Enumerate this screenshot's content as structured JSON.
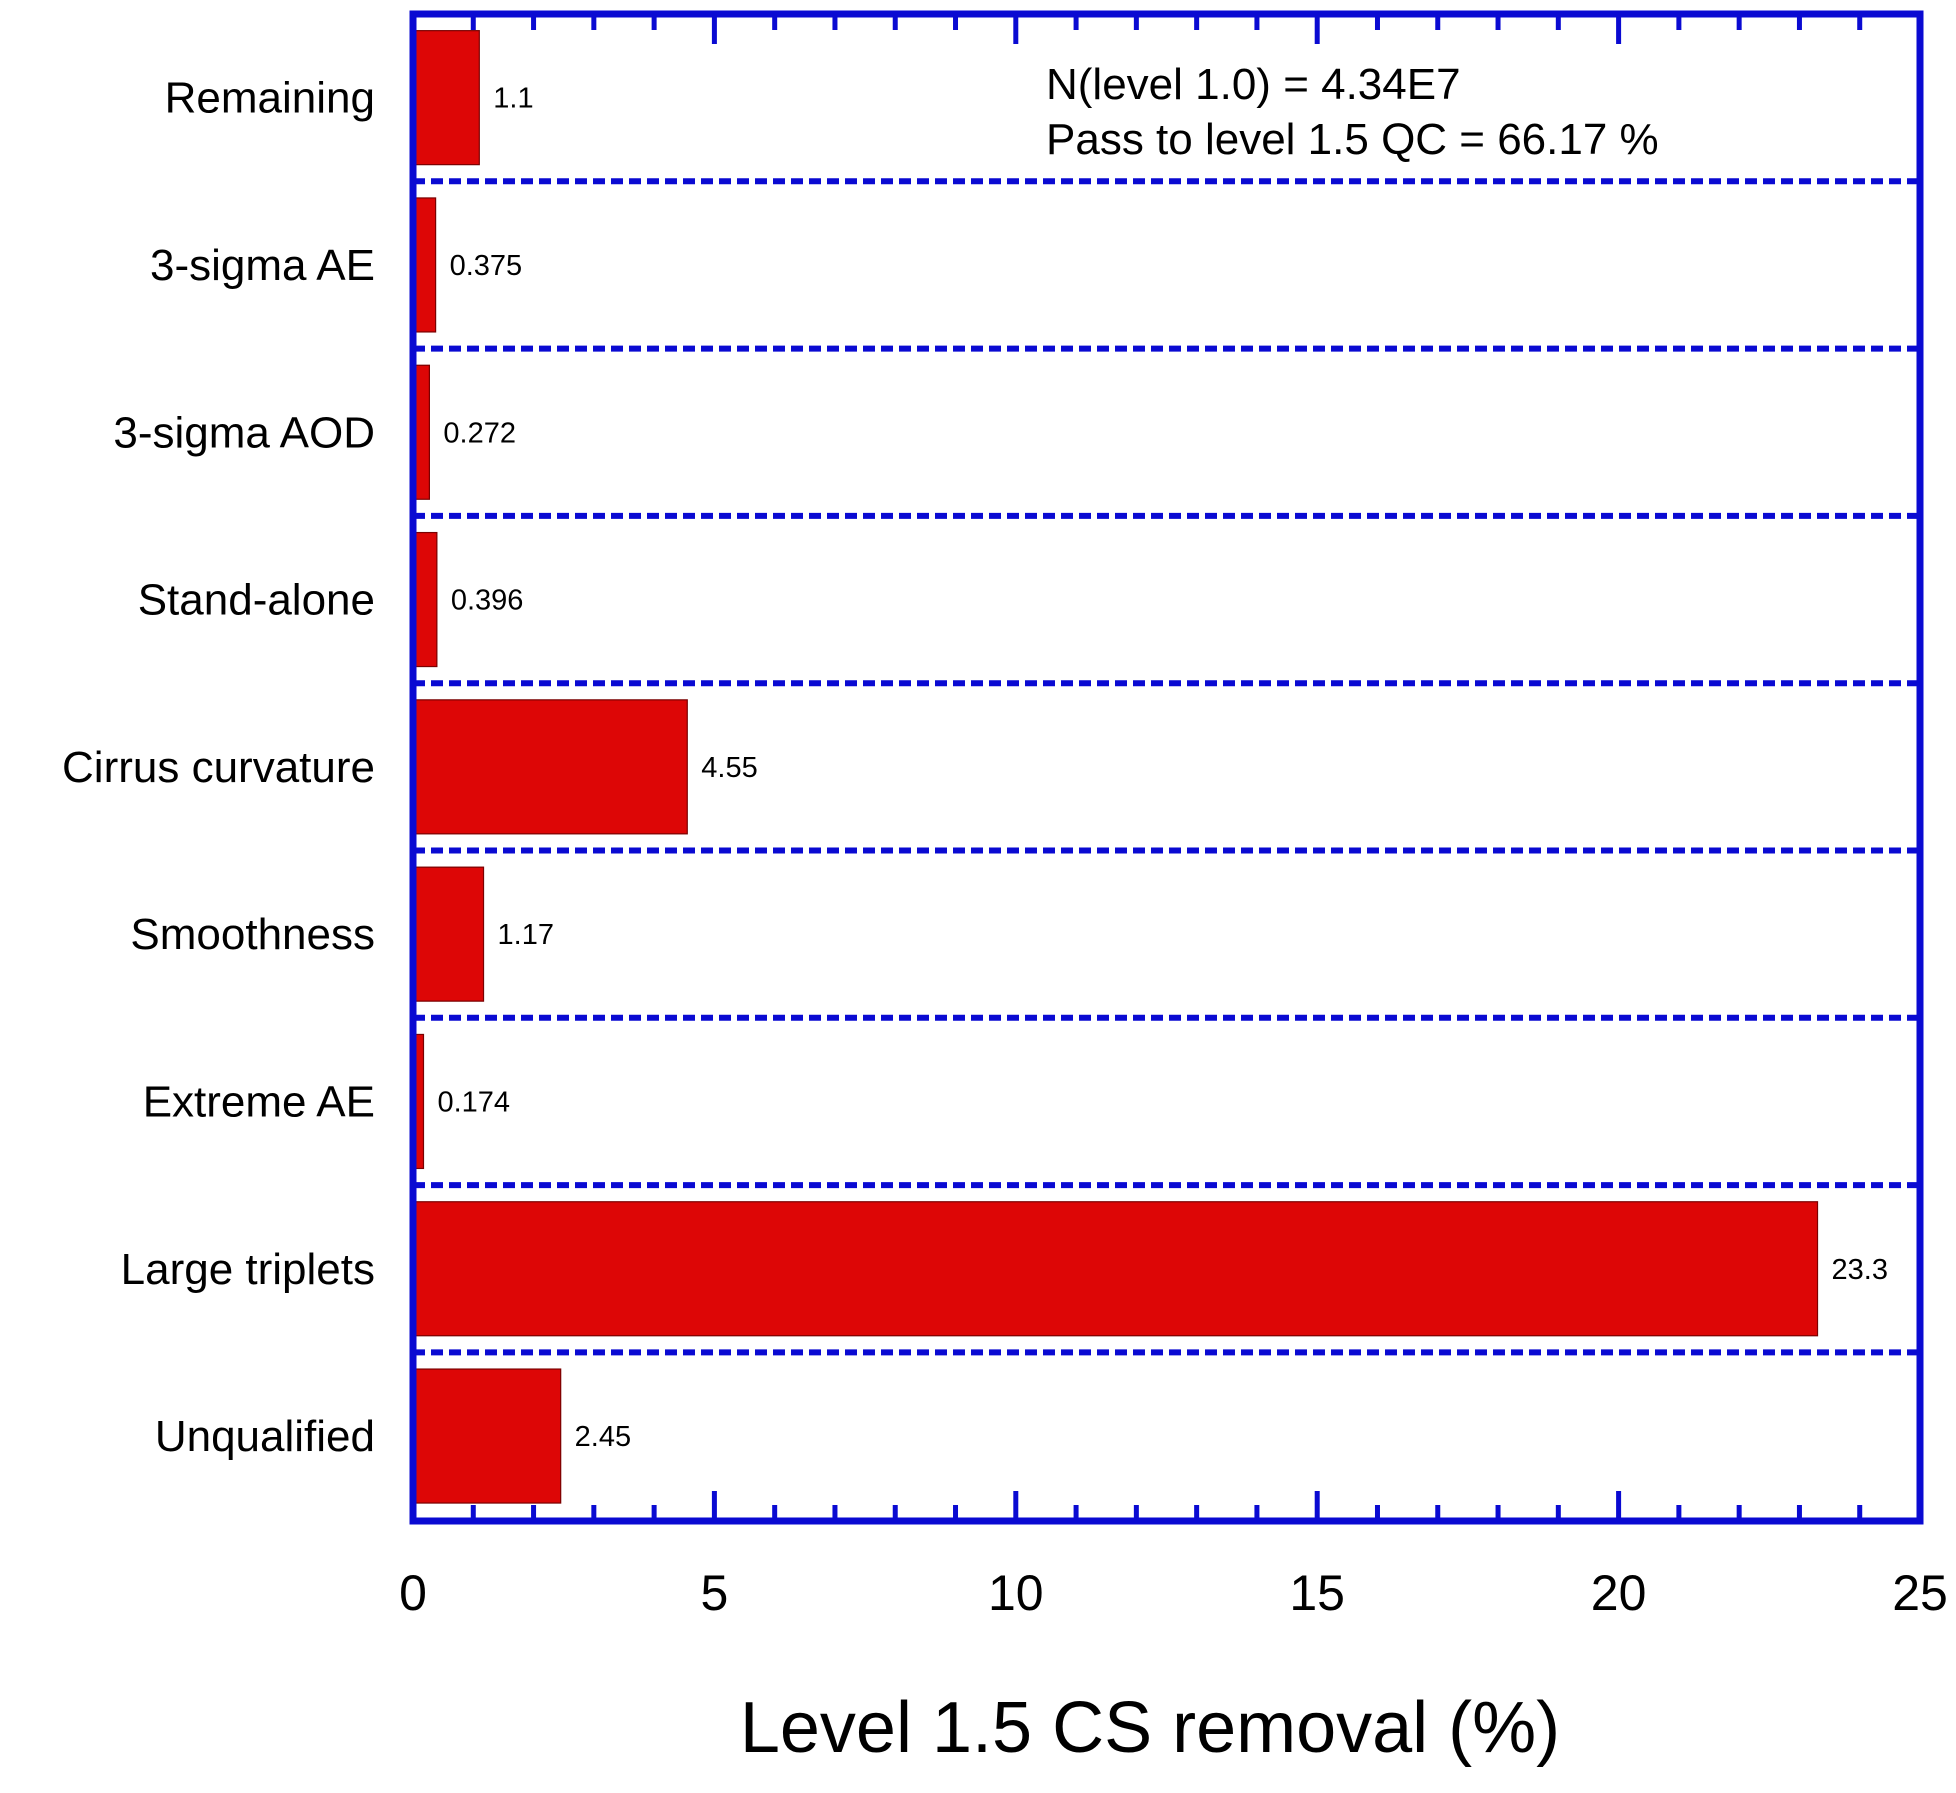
{
  "chart_data": {
    "type": "bar",
    "orientation": "horizontal",
    "categories": [
      "Remaining",
      "3-sigma AE",
      "3-sigma AOD",
      "Stand-alone",
      "Cirrus curvature",
      "Smoothness",
      "Extreme AE",
      "Large triplets",
      "Unqualified"
    ],
    "values": [
      1.1,
      0.375,
      0.272,
      0.396,
      4.55,
      1.17,
      0.174,
      23.3,
      2.45
    ],
    "value_labels": [
      "1.1",
      "0.375",
      "0.272",
      "0.396",
      "4.55",
      "1.17",
      "0.174",
      "23.3",
      "2.45"
    ],
    "xlabel": "Level 1.5 CS removal (%)",
    "xlim": [
      0,
      25
    ],
    "x_ticks": [
      "0",
      "5",
      "10",
      "15",
      "20",
      "25"
    ],
    "x_tick_values": [
      0,
      5,
      10,
      15,
      20,
      25
    ],
    "minor_tick_step": 1,
    "grid": "dashed horizontal separators between categories",
    "annotations": [
      "N(level 1.0) = 4.34E7",
      "Pass to level 1.5 QC = 66.17 %"
    ],
    "annotation_placement": "top-right",
    "colors": {
      "bar": "#dd0606",
      "bar_edge": "#7a0000",
      "frame": "#0a0ad2",
      "text": "#000000"
    }
  }
}
